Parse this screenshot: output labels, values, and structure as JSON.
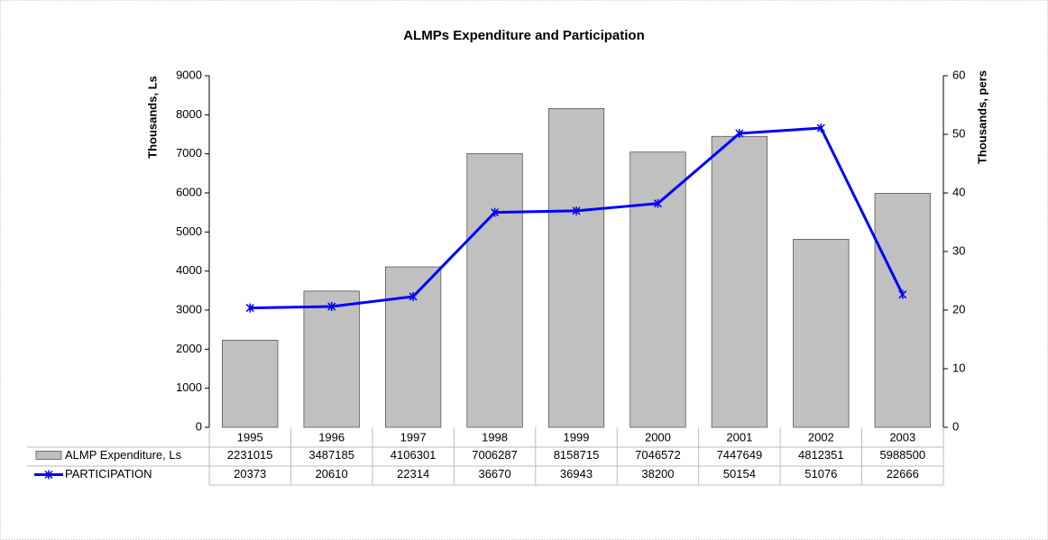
{
  "chart_data": {
    "type": "bar",
    "title": "ALMPs Expenditure and Participation",
    "y_label": "Thousands, Ls",
    "y2_label": "Thousands, pers",
    "categories": [
      "1995",
      "1996",
      "1997",
      "1998",
      "1999",
      "2000",
      "2001",
      "2002",
      "2003"
    ],
    "series": [
      {
        "name": "ALMP Expenditure, Ls",
        "type": "bar",
        "color": "#c0c0c0",
        "values": [
          2231.015,
          3487.185,
          4106.301,
          7006.287,
          8158.715,
          7046.572,
          7447.649,
          4812.351,
          5988.5
        ],
        "value_labels": [
          "2231015",
          "3487185",
          "4106301",
          "7006287",
          "8158715",
          "7046572",
          "7447649",
          "4812351",
          "5988500"
        ]
      },
      {
        "name": "PARTICIPATION",
        "type": "line",
        "axis": "y2",
        "color": "#0000ff",
        "values": [
          20.373,
          20.61,
          22.314,
          36.67,
          36.943,
          38.2,
          50.154,
          51.076,
          22.666
        ],
        "value_labels": [
          "20373",
          "20610",
          "22314",
          "36670",
          "36943",
          "38200",
          "50154",
          "51076",
          "22666"
        ]
      }
    ],
    "ylim": [
      0,
      9000
    ],
    "yticks": [
      0,
      1000,
      2000,
      3000,
      4000,
      5000,
      6000,
      7000,
      8000,
      9000
    ],
    "y2lim": [
      0,
      60
    ],
    "y2ticks": [
      0,
      10,
      20,
      30,
      40,
      50,
      60
    ]
  }
}
